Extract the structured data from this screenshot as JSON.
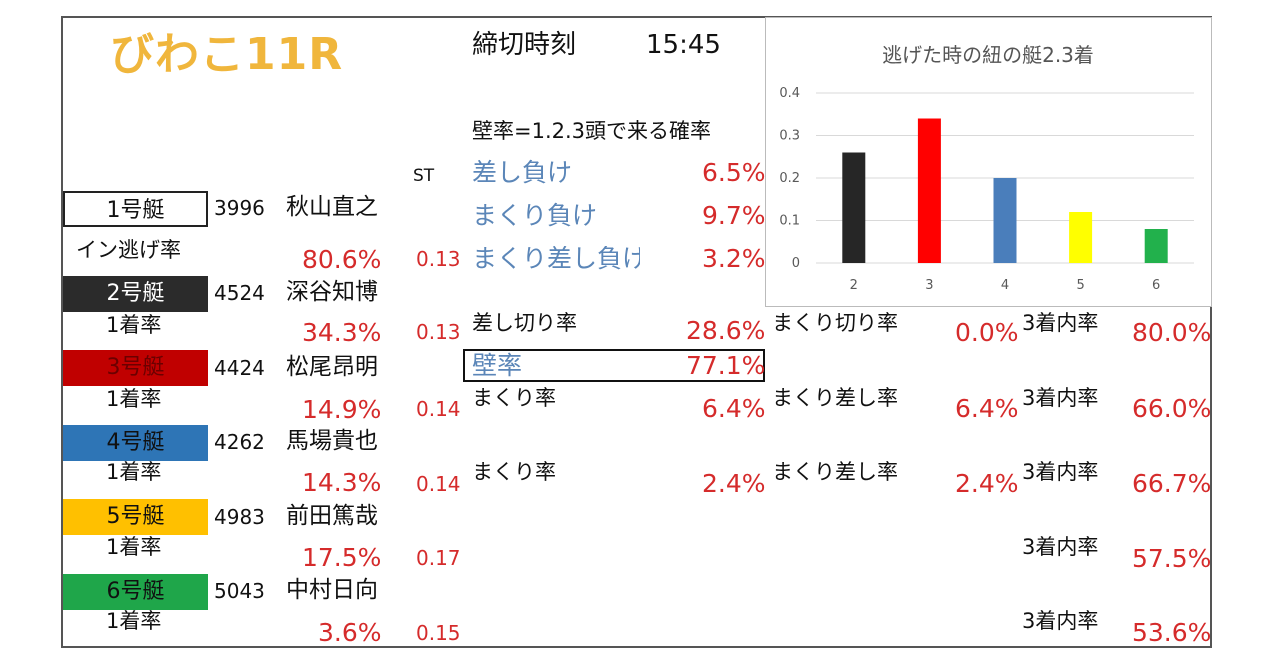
{
  "race_title": "びわこ11R",
  "deadline": {
    "label": "締切時刻",
    "time": "15:45"
  },
  "wall_definition": "壁率=1.2.3頭で来る確率",
  "st_header": "ST",
  "sashi_lose": {
    "label": "差し負け",
    "value": "6.5%"
  },
  "makuri_lose": {
    "label": "まくり負け",
    "value": "9.7%"
  },
  "makuri_sashi_lose": {
    "label": "まくり差し負け",
    "value": "3.2%"
  },
  "in_escape_label": "イン逃げ率",
  "boats": [
    {
      "label": "1号艇",
      "color": "#ffffff",
      "text_color": "#111111",
      "number": "3996",
      "name": "秋山直之",
      "rate_label": "イン逃げ率",
      "rate": "80.6%",
      "st": "0.13"
    },
    {
      "label": "2号艇",
      "color": "#2b2b2b",
      "text_color": "#ffffff",
      "number": "4524",
      "name": "深谷知博",
      "rate_label": "1着率",
      "rate": "34.3%",
      "st": "0.13"
    },
    {
      "label": "3号艇",
      "color": "#c00000",
      "text_color": "#c00000",
      "number": "4424",
      "name": "松尾昂明",
      "rate_label": "1着率",
      "rate": "14.9%",
      "st": "0.14"
    },
    {
      "label": "4号艇",
      "color": "#2e75b6",
      "text_color": "#111111",
      "number": "4262",
      "name": "馬場貴也",
      "rate_label": "1着率",
      "rate": "14.3%",
      "st": "0.14"
    },
    {
      "label": "5号艇",
      "color": "#ffc000",
      "text_color": "#111111",
      "number": "4983",
      "name": "前田篤哉",
      "rate_label": "1着率",
      "rate": "17.5%",
      "st": "0.17"
    },
    {
      "label": "6号艇",
      "color": "#1fa64a",
      "text_color": "#111111",
      "number": "5043",
      "name": "中村日向",
      "rate_label": "1着率",
      "rate": "3.6%",
      "st": "0.15"
    }
  ],
  "stats": {
    "sashi_kiri": {
      "label": "差し切り率",
      "value": "28.6%"
    },
    "makuri_kiri": {
      "label": "まくり切り率",
      "value": "0.0%"
    },
    "wall": {
      "label": "壁率",
      "value": "77.1%"
    },
    "top3_2": {
      "label": "3着内率",
      "value": "80.0%"
    },
    "makuri_3": {
      "label": "まくり率",
      "value": "6.4%"
    },
    "makuri_sashi_3": {
      "label": "まくり差し率",
      "value": "6.4%"
    },
    "top3_3": {
      "label": "3着内率",
      "value": "66.0%"
    },
    "makuri_4": {
      "label": "まくり率",
      "value": "2.4%"
    },
    "makuri_sashi_4": {
      "label": "まくり差し率",
      "value": "2.4%"
    },
    "top3_4": {
      "label": "3着内率",
      "value": "66.7%"
    },
    "top3_5": {
      "label": "3着内率",
      "value": "57.5%"
    },
    "top3_6": {
      "label": "3着内率",
      "value": "53.6%"
    }
  },
  "chart_data": {
    "type": "bar",
    "title": "逃げた時の紐の艇2.3着",
    "categories": [
      "2",
      "3",
      "4",
      "5",
      "6"
    ],
    "values": [
      0.26,
      0.34,
      0.2,
      0.12,
      0.08
    ],
    "colors": [
      "#262626",
      "#ff0000",
      "#4a7ebb",
      "#ffff00",
      "#22b14c"
    ],
    "yticks": [
      "0",
      "0.1",
      "0.2",
      "0.3",
      "0.4"
    ],
    "ylim": [
      0,
      0.4
    ],
    "grid": true
  }
}
